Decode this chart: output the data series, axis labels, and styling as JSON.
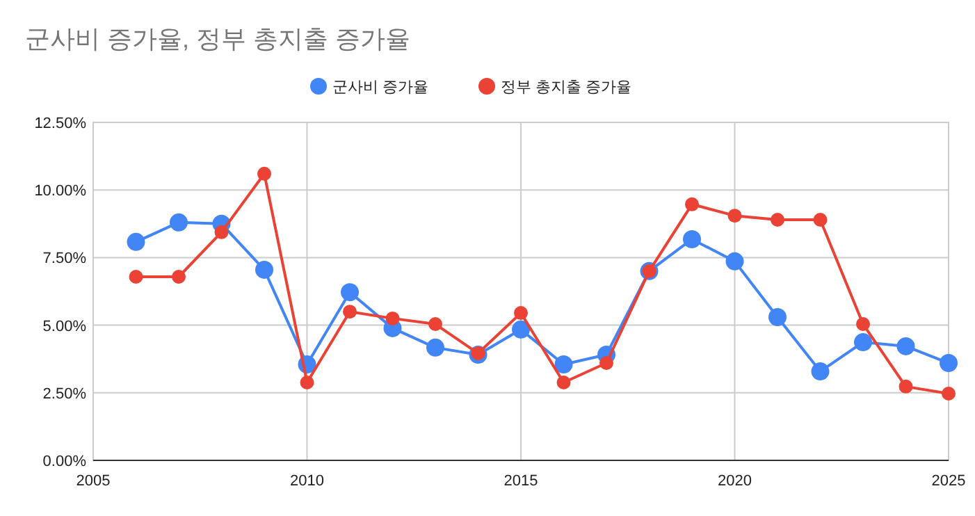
{
  "chart_data": {
    "type": "line",
    "title": "군사비 증가율, 정부 총지출 증가율",
    "x": [
      2006,
      2007,
      2008,
      2009,
      2010,
      2011,
      2012,
      2013,
      2014,
      2015,
      2016,
      2017,
      2018,
      2019,
      2020,
      2021,
      2022,
      2023,
      2024,
      2025
    ],
    "series": [
      {
        "name": "군사비 증가율",
        "color": "#4285f4",
        "values": [
          8.08,
          8.8,
          8.75,
          7.05,
          3.55,
          6.22,
          4.89,
          4.17,
          3.91,
          4.84,
          3.55,
          3.91,
          7.0,
          8.18,
          7.36,
          5.3,
          3.29,
          4.37,
          4.22,
          3.6
        ]
      },
      {
        "name": "정부 총지출 증가율",
        "color": "#ea4335",
        "values": [
          6.79,
          6.79,
          8.44,
          10.6,
          2.88,
          5.5,
          5.25,
          5.04,
          3.96,
          5.45,
          2.88,
          3.6,
          7.0,
          9.47,
          9.05,
          8.9,
          8.9,
          5.04,
          2.73,
          2.47
        ]
      }
    ],
    "xlim": [
      2005,
      2025
    ],
    "xticks": [
      2005,
      2010,
      2015,
      2020,
      2025
    ],
    "ylim": [
      0,
      12.5
    ],
    "yticks": [
      {
        "value": 0,
        "label": "0.00%"
      },
      {
        "value": 2.5,
        "label": "2.50%"
      },
      {
        "value": 5,
        "label": "5.00%"
      },
      {
        "value": 7.5,
        "label": "7.50%"
      },
      {
        "value": 10,
        "label": "10.00%"
      },
      {
        "value": 12.5,
        "label": "12.50%"
      }
    ],
    "grid": true,
    "legend": "top",
    "marker": "circle",
    "line_style": "solid"
  }
}
